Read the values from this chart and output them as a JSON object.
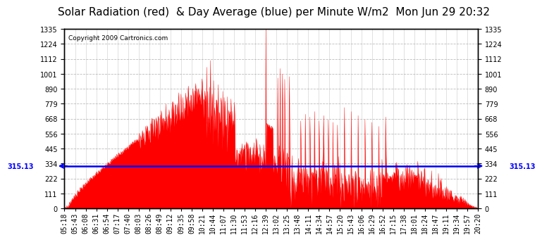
{
  "title": "Solar Radiation (red)  & Day Average (blue) per Minute W/m2  Mon Jun 29 20:32",
  "copyright": "Copyright 2009 Cartronics.com",
  "ylim": [
    0.0,
    1335.0
  ],
  "yticks": [
    0.0,
    111.2,
    222.5,
    333.8,
    445.0,
    556.2,
    667.5,
    778.8,
    890.0,
    1001.2,
    1112.5,
    1223.8,
    1335.0
  ],
  "day_average": 315.13,
  "fill_color": "red",
  "avg_line_color": "blue",
  "background_color": "white",
  "grid_color": "#aaaaaa",
  "title_fontsize": 11,
  "tick_fontsize": 7,
  "xtick_labels": [
    "05:18",
    "05:43",
    "06:08",
    "06:31",
    "06:54",
    "07:17",
    "07:40",
    "08:03",
    "08:26",
    "08:49",
    "09:12",
    "09:35",
    "09:58",
    "10:21",
    "10:44",
    "11:07",
    "11:30",
    "11:53",
    "12:16",
    "12:39",
    "13:02",
    "13:25",
    "13:48",
    "14:11",
    "14:34",
    "14:57",
    "15:20",
    "15:43",
    "16:06",
    "16:29",
    "16:52",
    "17:15",
    "17:38",
    "18:01",
    "18:24",
    "18:47",
    "19:11",
    "19:34",
    "19:57",
    "20:20"
  ],
  "n_points": 902,
  "seed": 1234
}
